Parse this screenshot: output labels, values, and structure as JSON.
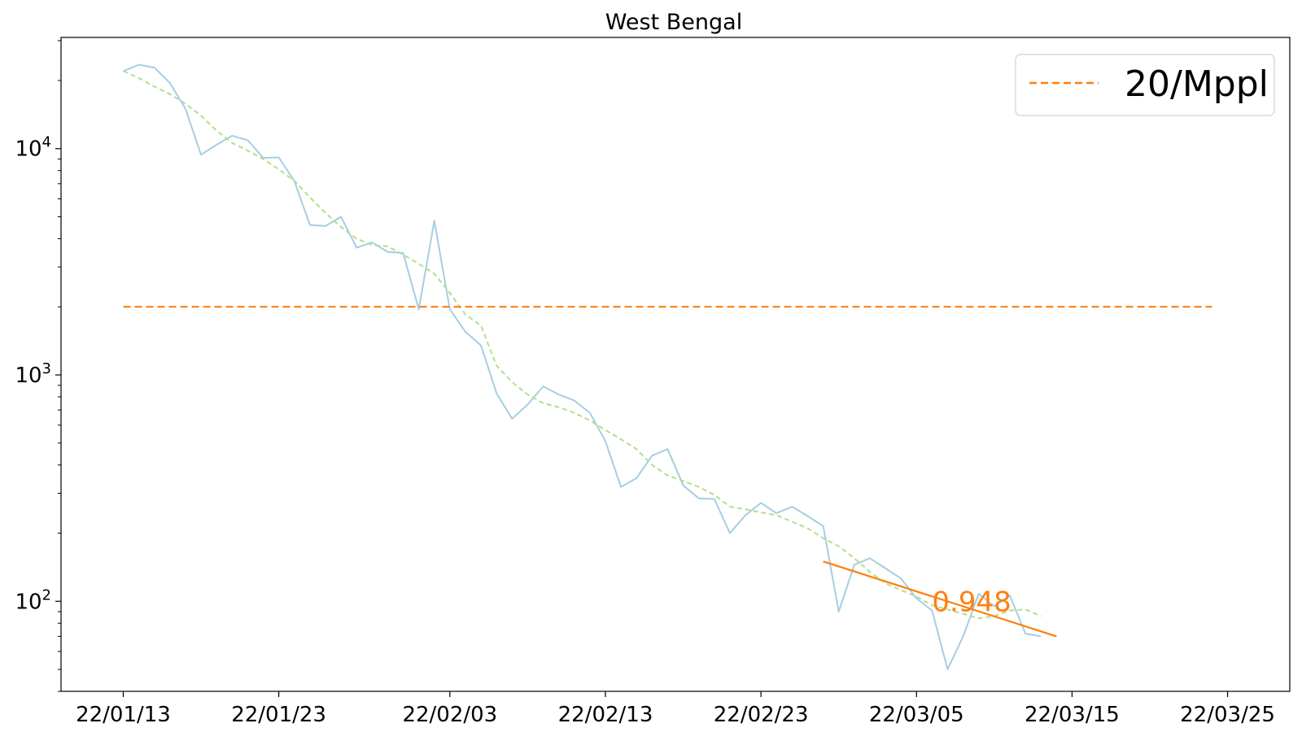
{
  "chart_data": {
    "type": "line",
    "title": "West Bengal",
    "xlabel": "",
    "ylabel": "",
    "yscale": "log",
    "ylim": [
      40,
      31000
    ],
    "xlim": [
      "2022-01-09",
      "2022-03-29"
    ],
    "x_tick_labels": [
      "22/01/13",
      "22/01/23",
      "22/02/03",
      "22/02/13",
      "22/02/23",
      "22/03/05",
      "22/03/15",
      "22/03/25"
    ],
    "x_tick_dates": [
      "2022-01-13",
      "2022-01-23",
      "2022-02-03",
      "2022-02-13",
      "2022-02-23",
      "2022-03-05",
      "2022-03-15",
      "2022-03-25"
    ],
    "y_major_ticks": [
      {
        "value": 100,
        "base": "10",
        "exp": "2"
      },
      {
        "value": 1000,
        "base": "10",
        "exp": "3"
      },
      {
        "value": 10000,
        "base": "10",
        "exp": "4"
      }
    ],
    "grid": false,
    "legend": {
      "placement": "top-right",
      "entries": [
        {
          "label": "20/Mppl",
          "color": "#ff7f0e",
          "style": "dashed"
        }
      ]
    },
    "start_date": "2022-01-13",
    "series": [
      {
        "role": "daily",
        "color": "#a6cee3",
        "style": "solid",
        "values": [
          22000,
          23500,
          22800,
          19500,
          15000,
          9400,
          10400,
          11400,
          10900,
          9100,
          9150,
          7200,
          4600,
          4550,
          5000,
          3650,
          3850,
          3500,
          3450,
          1950,
          4800,
          1950,
          1550,
          1350,
          830,
          640,
          740,
          890,
          820,
          770,
          680,
          510,
          320,
          350,
          440,
          470,
          325,
          285,
          283,
          200,
          240,
          272,
          245,
          262,
          238,
          215,
          90,
          145,
          155,
          140,
          126,
          103,
          91,
          50,
          70,
          108,
          95,
          106,
          72,
          70
        ]
      },
      {
        "role": "moving-average",
        "color": "#b2df8a",
        "style": "dashed",
        "values": [
          22000,
          20500,
          18800,
          17400,
          15800,
          14000,
          12000,
          10600,
          9800,
          9000,
          8100,
          7200,
          6100,
          5200,
          4500,
          4000,
          3750,
          3700,
          3400,
          3100,
          2800,
          2300,
          1850,
          1650,
          1100,
          930,
          820,
          750,
          720,
          680,
          630,
          570,
          520,
          470,
          400,
          360,
          340,
          320,
          295,
          262,
          255,
          247,
          240,
          225,
          210,
          190,
          175,
          155,
          135,
          120,
          112,
          105,
          96,
          92,
          88,
          84,
          86,
          91,
          92,
          86
        ]
      },
      {
        "role": "threshold",
        "name": "20/Mppl",
        "color": "#ff7f0e",
        "style": "dashed",
        "x": [
          "2022-01-13",
          "2022-03-24"
        ],
        "values": [
          2000,
          2000
        ]
      },
      {
        "role": "fit",
        "color": "#ff7f0e",
        "style": "solid",
        "x": [
          "2022-02-27",
          "2022-03-14"
        ],
        "values": [
          150,
          70
        ]
      }
    ],
    "annotations": [
      {
        "text": "0.948",
        "x": "2022-03-06",
        "y": 100,
        "color": "#ff7f0e"
      }
    ]
  }
}
